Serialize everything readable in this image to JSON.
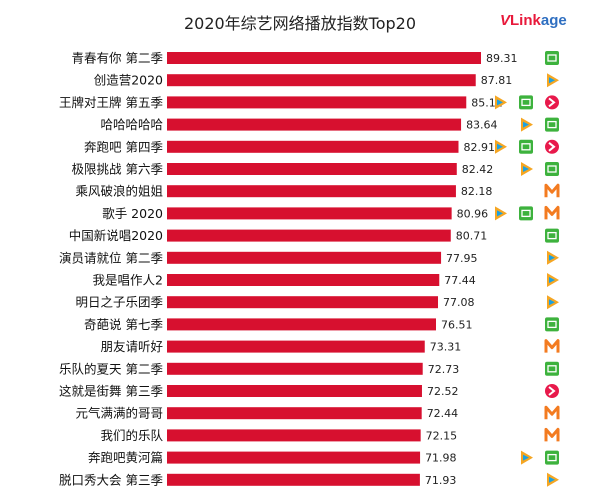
{
  "title": "2020年综艺网络播放指数Top20",
  "logo": {
    "brand": "VLinkage",
    "part1": "V",
    "part2": "Link",
    "part3": "age"
  },
  "colors": {
    "bar": "#d7102f",
    "iqiyi": "#3db23d",
    "tencent": "#f5a623",
    "mgtv": "#f37b20",
    "youku": "#1ba1e2"
  },
  "chart_data": {
    "type": "bar",
    "orientation": "horizontal",
    "title": "2020年综艺网络播放指数Top20",
    "categories": [
      "青春有你 第二季",
      "创造营2020",
      "王牌对王牌 第五季",
      "哈哈哈哈哈",
      "奔跑吧 第四季",
      "极限挑战 第六季",
      "乘风破浪的姐姐",
      "歌手 2020",
      "中国新说唱2020",
      "演员请就位 第二季",
      "我是唱作人2",
      "明日之子乐团季",
      "奇葩说 第七季",
      "朋友请听好",
      "乐队的夏天 第二季",
      "这就是街舞 第三季",
      "元气满满的哥哥",
      "我们的乐队",
      "奔跑吧黄河篇",
      "脱口秀大会 第三季"
    ],
    "values": [
      89.31,
      87.81,
      85.12,
      83.64,
      82.91,
      82.42,
      82.18,
      80.96,
      80.71,
      77.95,
      77.44,
      77.08,
      76.51,
      73.31,
      72.73,
      72.52,
      72.44,
      72.15,
      71.98,
      71.93
    ],
    "value_labels": [
      "89.31",
      "87.81",
      "85.12",
      "83.64",
      "82.91",
      "82.42",
      "82.18",
      "80.96",
      "80.71",
      "77.95",
      "77.44",
      "77.08",
      "76.51",
      "73.31",
      "72.73",
      "72.52",
      "72.44",
      "72.15",
      "71.98",
      "71.93"
    ],
    "platforms": [
      [
        "iqiyi"
      ],
      [
        "tencent"
      ],
      [
        "tencent",
        "iqiyi",
        "youku"
      ],
      [
        "tencent",
        "iqiyi"
      ],
      [
        "tencent",
        "iqiyi",
        "youku"
      ],
      [
        "tencent",
        "iqiyi"
      ],
      [
        "mgtv"
      ],
      [
        "tencent",
        "iqiyi",
        "mgtv"
      ],
      [
        "iqiyi"
      ],
      [
        "tencent"
      ],
      [
        "tencent"
      ],
      [
        "tencent"
      ],
      [
        "iqiyi"
      ],
      [
        "mgtv"
      ],
      [
        "iqiyi"
      ],
      [
        "youku"
      ],
      [
        "mgtv"
      ],
      [
        "mgtv"
      ],
      [
        "tencent",
        "iqiyi"
      ],
      [
        "tencent"
      ]
    ],
    "xlim": [
      0,
      89.31
    ],
    "grid": false,
    "legend": "none"
  }
}
